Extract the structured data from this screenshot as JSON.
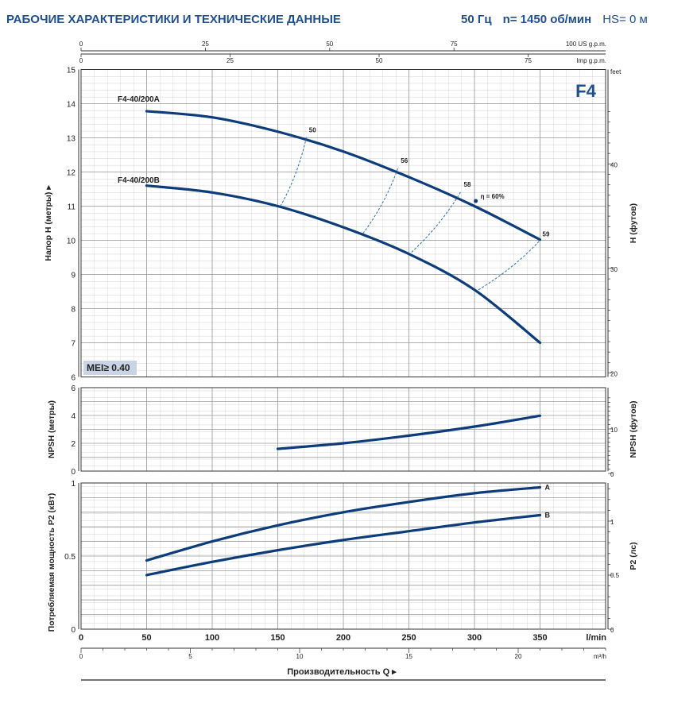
{
  "header": {
    "title": "РАБОЧИЕ ХАРАКТЕРИСТИКИ И ТЕХНИЧЕСКИЕ ДАННЫЕ",
    "freq": "50 Гц",
    "speed": "n= 1450 об/мин",
    "hs": "HS= 0 м"
  },
  "chart_data": {
    "type": "line",
    "model": "F4",
    "mei": "MEI≥ 0.40",
    "x_axis": {
      "label": "Производительность Q",
      "unit": "l/min",
      "range": [
        0,
        400
      ],
      "ticks": [
        "0",
        "50",
        "100",
        "150",
        "200",
        "250",
        "300",
        "350"
      ],
      "m3h_unit": "m³/h",
      "m3h_ticks": [
        "0",
        "5",
        "10",
        "15",
        "20"
      ],
      "usgpm_unit": "100 US g.p.m.",
      "usgpm_ticks": [
        "0",
        "25",
        "50",
        "75"
      ],
      "impgpm_unit": "Imp g.p.m.",
      "impgpm_ticks": [
        "0",
        "25",
        "50",
        "75"
      ]
    },
    "head": {
      "ylabel": "Напор H (метры)",
      "ylabel_right": "H (футов)",
      "ylim": [
        6,
        15
      ],
      "yticks": [
        "6",
        "7",
        "8",
        "9",
        "10",
        "11",
        "12",
        "13",
        "14",
        "15"
      ],
      "right_unit": "feet",
      "right_ticks": [
        "20",
        "30",
        "40"
      ],
      "series": [
        {
          "name": "F4-40/200A",
          "x": [
            50,
            100,
            150,
            200,
            250,
            300,
            350
          ],
          "y": [
            13.78,
            13.6,
            13.18,
            12.6,
            11.85,
            11.0,
            10.02
          ]
        },
        {
          "name": "F4-40/200B",
          "x": [
            50,
            100,
            150,
            200,
            250,
            300,
            350
          ],
          "y": [
            11.6,
            11.4,
            11.0,
            10.38,
            9.6,
            8.55,
            7.0
          ]
        }
      ],
      "efficiency": [
        {
          "label": "50",
          "top": [
            172,
            13.05
          ],
          "bottom": [
            152,
            11.0
          ]
        },
        {
          "label": "56",
          "top": [
            242,
            12.15
          ],
          "bottom": [
            215,
            10.2
          ]
        },
        {
          "label": "58",
          "top": [
            290,
            11.45
          ],
          "bottom": [
            252,
            9.65
          ]
        },
        {
          "label": "59",
          "top": [
            350,
            10.0
          ],
          "bottom": [
            303,
            8.55
          ]
        }
      ],
      "eta_label": "η = 60%",
      "eta_point": [
        301,
        11.15
      ]
    },
    "npsh": {
      "ylabel": "NPSH (метры)",
      "ylabel_right": "NPSH (футов)",
      "ylim": [
        0,
        6
      ],
      "yticks": [
        "0",
        "2",
        "4",
        "6"
      ],
      "right_ticks": [
        "0",
        "10"
      ],
      "x": [
        150,
        200,
        250,
        300,
        350
      ],
      "y": [
        1.6,
        2.0,
        2.55,
        3.2,
        3.98
      ]
    },
    "power": {
      "ylabel": "Потребляемая мощность P2 (кВт)",
      "ylabel_right": "P2 (лс)",
      "ylim": [
        0,
        1
      ],
      "yticks": [
        "0",
        "0.5",
        "1"
      ],
      "right_ticks": [
        "0",
        "0.5",
        "1"
      ],
      "series": [
        {
          "name": "A",
          "x": [
            50,
            100,
            150,
            200,
            250,
            300,
            350
          ],
          "y": [
            0.47,
            0.6,
            0.71,
            0.8,
            0.87,
            0.93,
            0.97
          ]
        },
        {
          "name": "B",
          "x": [
            50,
            100,
            150,
            200,
            250,
            300,
            350
          ],
          "y": [
            0.37,
            0.46,
            0.54,
            0.61,
            0.67,
            0.73,
            0.78
          ]
        }
      ]
    }
  }
}
